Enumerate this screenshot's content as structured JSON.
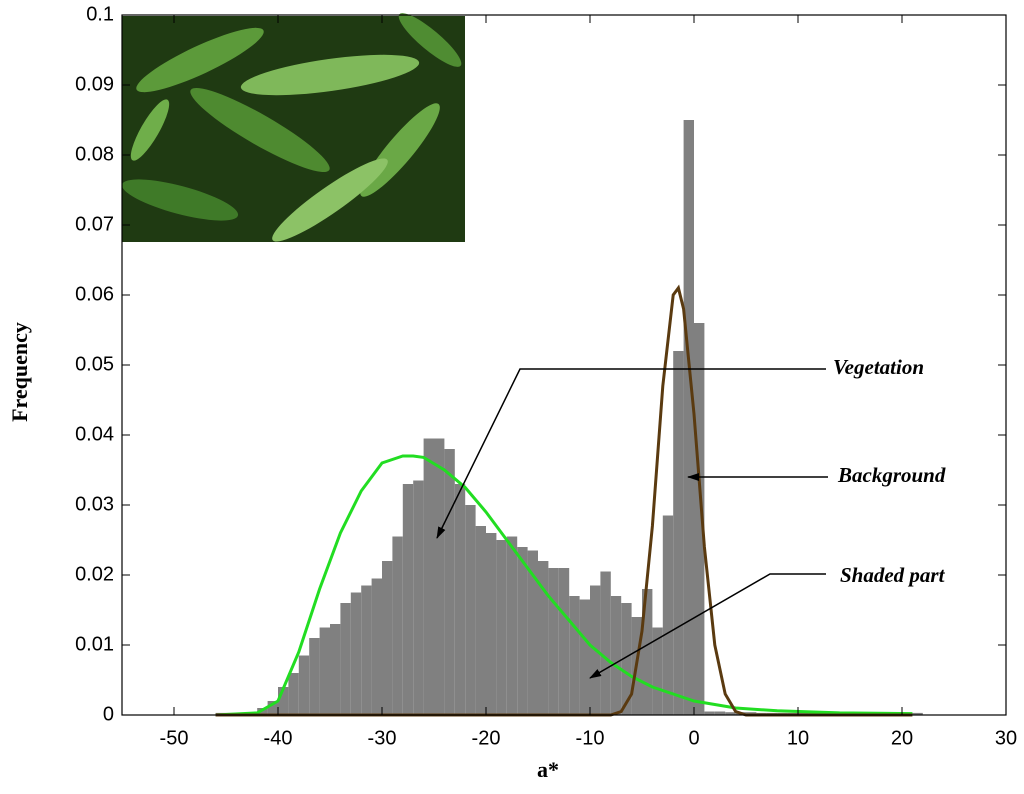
{
  "chart_data": {
    "type": "histogram",
    "xlabel": "a*",
    "ylabel": "Frequency",
    "xlim": [
      -55,
      30
    ],
    "ylim": [
      0,
      0.1
    ],
    "xticks": [
      -50,
      -40,
      -30,
      -20,
      -10,
      0,
      10,
      20,
      30
    ],
    "yticks": [
      0,
      0.01,
      0.02,
      0.03,
      0.04,
      0.05,
      0.06,
      0.07,
      0.08,
      0.09,
      0.1
    ],
    "color": "#808080",
    "bins": [
      -46,
      -45,
      -44,
      -43,
      -42,
      -41,
      -40,
      -39,
      -38,
      -37,
      -36,
      -35,
      -34,
      -33,
      -32,
      -31,
      -30,
      -29,
      -28,
      -27,
      -26,
      -25,
      -24,
      -23,
      -22,
      -21,
      -20,
      -19,
      -18,
      -17,
      -16,
      -15,
      -14,
      -13,
      -12,
      -11,
      -10,
      -9,
      -8,
      -7,
      -6,
      -5,
      -4,
      -3,
      -2,
      -1,
      0,
      1,
      2,
      3,
      4,
      5,
      6,
      7,
      8,
      9,
      10,
      11,
      12,
      13,
      14,
      15,
      16,
      17,
      18,
      19,
      20,
      21,
      22
    ],
    "values": [
      0.0003,
      0.0003,
      0.0003,
      0.0003,
      0.001,
      0.002,
      0.004,
      0.006,
      0.0085,
      0.011,
      0.0125,
      0.013,
      0.016,
      0.0175,
      0.0185,
      0.0195,
      0.022,
      0.0255,
      0.033,
      0.0335,
      0.0395,
      0.0395,
      0.038,
      0.033,
      0.03,
      0.027,
      0.026,
      0.025,
      0.0255,
      0.024,
      0.0235,
      0.022,
      0.021,
      0.021,
      0.017,
      0.0165,
      0.0185,
      0.0205,
      0.017,
      0.016,
      0.014,
      0.018,
      0.0125,
      0.0285,
      0.052,
      0.085,
      0.056,
      0.0005,
      0.0005,
      0.0004,
      0.0004,
      0.0004,
      0.0003,
      0.0003,
      0.0003,
      0.0003,
      0.0003,
      0.0003,
      0.0003,
      0.0003,
      0.0003,
      0.0003,
      0.0003,
      0.0003,
      0.0003,
      0.0003,
      0.0003,
      0.0003
    ],
    "curves": [
      {
        "color": "#22dd22",
        "x": [
          -46,
          -42,
          -40,
          -38,
          -36,
          -34,
          -32,
          -30,
          -28,
          -27,
          -26,
          -24,
          -22,
          -20,
          -18,
          -16,
          -14,
          -12,
          -10,
          -8,
          -6,
          -4,
          -2,
          0,
          4,
          8,
          14,
          21
        ],
        "values": [
          0,
          0.0003,
          0.002,
          0.009,
          0.018,
          0.026,
          0.032,
          0.036,
          0.037,
          0.037,
          0.0368,
          0.035,
          0.0325,
          0.029,
          0.025,
          0.021,
          0.017,
          0.0135,
          0.01,
          0.0075,
          0.0055,
          0.004,
          0.003,
          0.002,
          0.001,
          0.0006,
          0.0003,
          0.0002
        ]
      },
      {
        "color": "#5a3a10",
        "x": [
          -46,
          -8,
          -7,
          -6,
          -5,
          -4,
          -3,
          -2,
          -1.5,
          -1,
          0,
          1,
          2,
          3,
          4,
          5,
          21
        ],
        "values": [
          0,
          0,
          0.0005,
          0.003,
          0.012,
          0.027,
          0.047,
          0.06,
          0.061,
          0.058,
          0.043,
          0.024,
          0.01,
          0.003,
          0.0005,
          0,
          0
        ]
      }
    ],
    "annotations": [
      "Vegetation",
      "Background",
      "Shaded part"
    ]
  }
}
